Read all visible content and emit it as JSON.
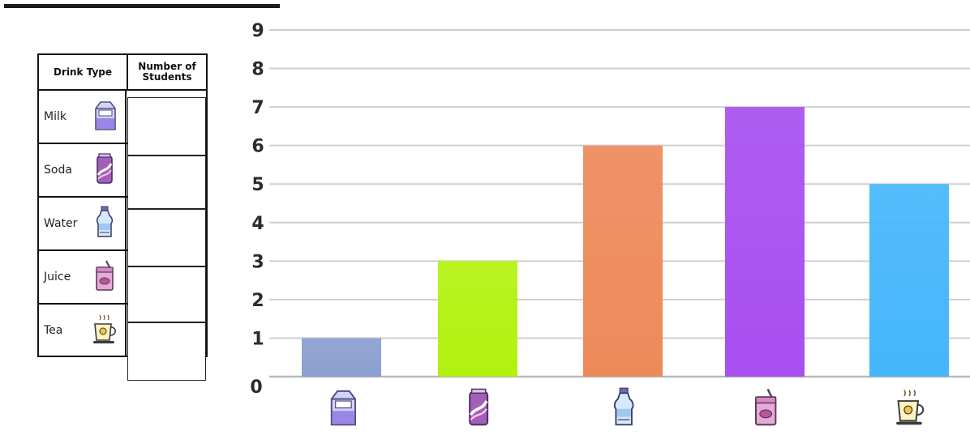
{
  "table": {
    "headers": [
      "Drink Type",
      "Number of Students"
    ],
    "rows": [
      {
        "drink": "Milk",
        "icon": "milk-carton-icon"
      },
      {
        "drink": "Soda",
        "icon": "soda-can-icon"
      },
      {
        "drink": "Water",
        "icon": "water-bottle-icon"
      },
      {
        "drink": "Juice",
        "icon": "juice-box-icon"
      },
      {
        "drink": "Tea",
        "icon": "tea-cup-icon"
      }
    ]
  },
  "chart_data": {
    "type": "bar",
    "categories": [
      "Milk",
      "Soda",
      "Water",
      "Juice",
      "Tea"
    ],
    "category_icons": [
      "milk-carton-icon",
      "soda-can-icon",
      "water-bottle-icon",
      "juice-box-icon",
      "tea-cup-icon"
    ],
    "values": [
      1,
      3,
      6,
      7,
      5
    ],
    "bar_colors": [
      "#8b9fd0",
      "#b2f20e",
      "#ed8a5a",
      "#a84ff0",
      "#45b6fb"
    ],
    "ylim": [
      0,
      9
    ],
    "yticks": [
      0,
      1,
      2,
      3,
      4,
      5,
      6,
      7,
      8,
      9
    ],
    "grid": true,
    "title": "",
    "xlabel": "",
    "ylabel": ""
  }
}
